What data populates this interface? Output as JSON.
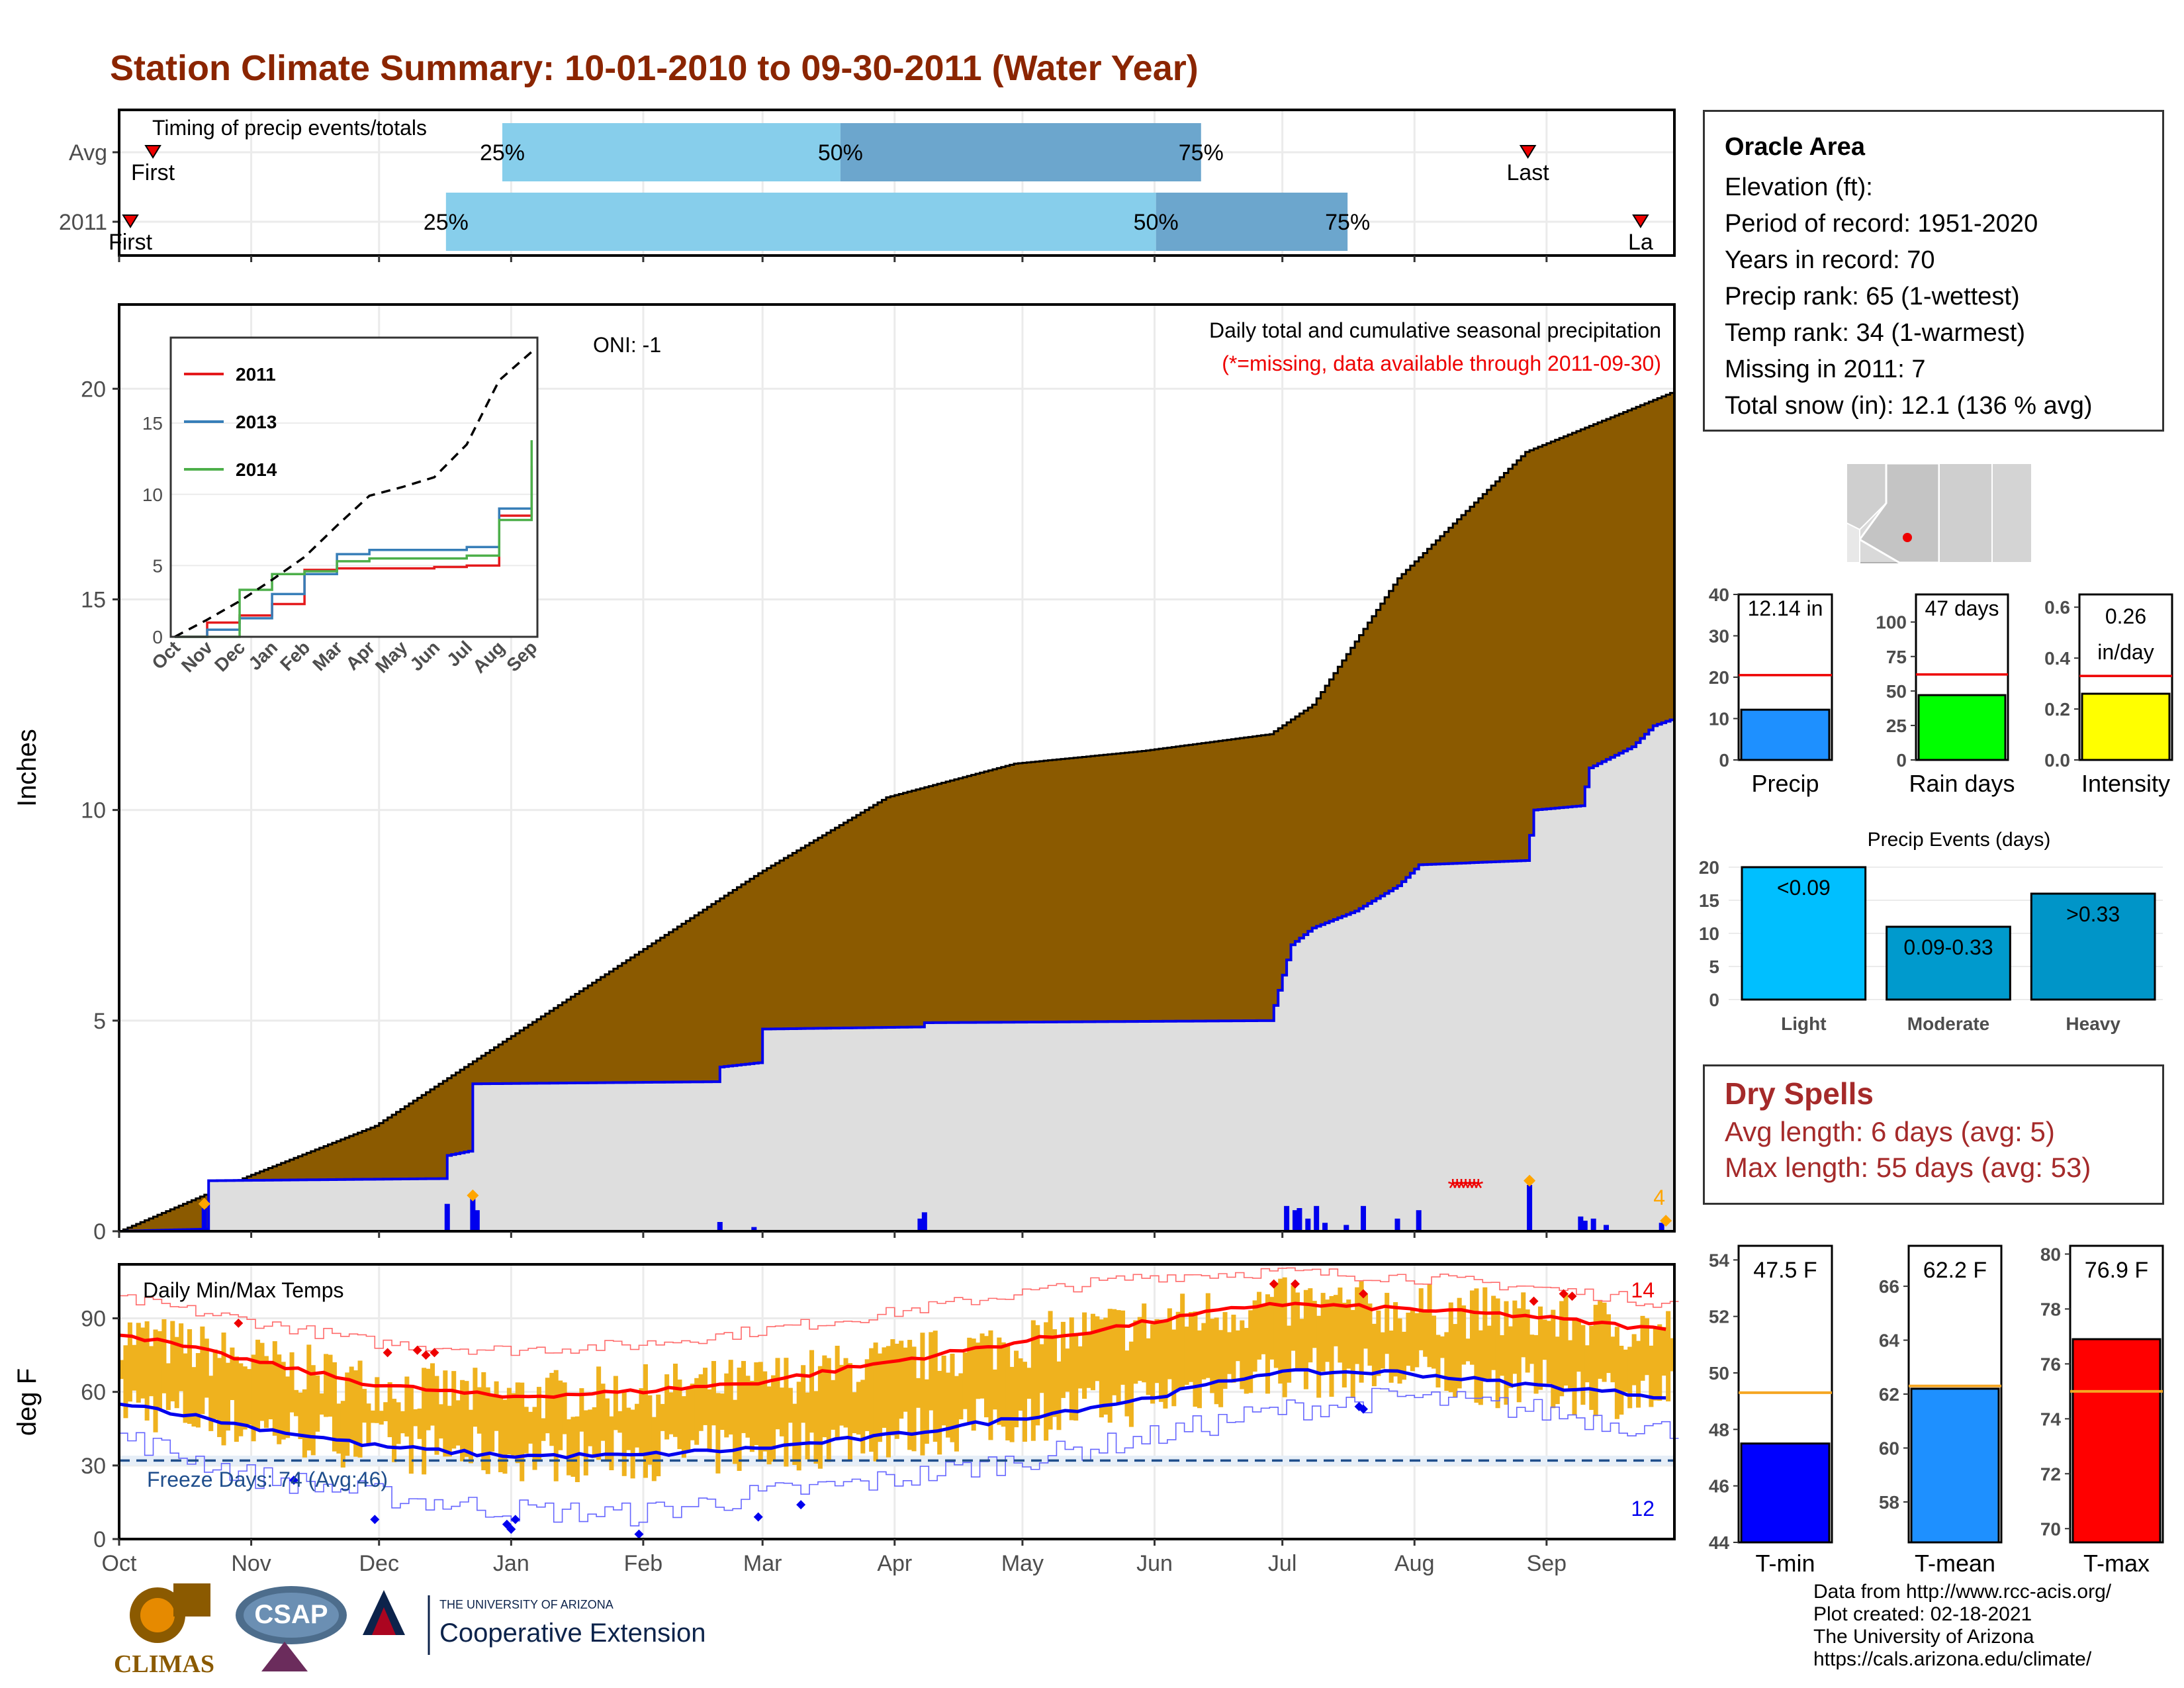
{
  "title": "Station Climate Summary: 10-01-2010 to 09-30-2011 (Water Year)",
  "timing": {
    "label": "Timing of precip events/totals",
    "rows": [
      {
        "name": "Avg",
        "first_label": "First",
        "last_label": "Last",
        "q25": "25%",
        "q50": "50%",
        "q75": "75%",
        "first_day": 3,
        "p25_day": 34,
        "p50_day": 64,
        "p75_day": 96,
        "last_day": 125
      },
      {
        "name": "2011",
        "first_label": "First",
        "last_label": "La",
        "q25": "25%",
        "q50": "50%",
        "q75": "75%",
        "first_day": 1,
        "p25_day": 29,
        "p50_day": 92,
        "p75_day": 109,
        "last_day": 135
      }
    ]
  },
  "precip_panel": {
    "ylabel": "Inches",
    "yticks": [
      "0",
      "5",
      "10",
      "15",
      "20"
    ],
    "ylim": [
      0,
      22
    ],
    "note1": "Daily total and cumulative seasonal precipitation",
    "note2": "(*=missing, data available through 2011-09-30)",
    "oni": "ONI: -1",
    "count_label": "4"
  },
  "inset": {
    "yticks": [
      "0",
      "5",
      "10",
      "15"
    ],
    "xticks": [
      "Oct",
      "Nov",
      "Dec",
      "Jan",
      "Feb",
      "Mar",
      "Apr",
      "May",
      "Jun",
      "Jul",
      "Aug",
      "Sep"
    ],
    "legend": [
      {
        "name": "2011",
        "color": "#e41a1c"
      },
      {
        "name": "2013",
        "color": "#377eb8"
      },
      {
        "name": "2014",
        "color": "#4daf4a"
      }
    ]
  },
  "temp_panel": {
    "ylabel": "deg F",
    "label": "Daily Min/Max Temps",
    "yticks": [
      "0",
      "30",
      "60",
      "90"
    ],
    "ylim": [
      0,
      112
    ],
    "freeze": "Freeze Days: 74 (Avg:46)",
    "freeze_line": 32,
    "count_red": "14",
    "count_blue": "12",
    "xticks": [
      "Oct",
      "Nov",
      "Dec",
      "Jan",
      "Feb",
      "Mar",
      "Apr",
      "May",
      "Jun",
      "Jul",
      "Aug",
      "Sep"
    ]
  },
  "station": {
    "name": "Oracle Area",
    "lines": [
      "Elevation (ft):",
      "Period of record: 1951-2020",
      "Years in record: 70",
      "Precip rank: 65 (1-wettest)",
      "Temp rank: 34 (1-warmest)",
      "Missing in 2011: 7",
      "Total snow (in): 12.1 (136 % avg)"
    ]
  },
  "chart_data": [
    {
      "type": "bar",
      "title": "",
      "categories": [
        "Precip",
        "Rain days",
        "Intensity"
      ],
      "series": [
        {
          "values": [
            12.14,
            47,
            0.26
          ]
        },
        {
          "name": "avg",
          "values": [
            20.5,
            62,
            0.33
          ]
        }
      ],
      "labels": [
        "12.14 in",
        "47 days",
        "0.26",
        "in/day"
      ],
      "ylims": [
        [
          0,
          40
        ],
        [
          0,
          120
        ],
        [
          0,
          0.65
        ]
      ],
      "yticks": [
        [
          "0",
          "10",
          "20",
          "30",
          "40"
        ],
        [
          "0",
          "25",
          "50",
          "75",
          "100"
        ],
        [
          "0.0",
          "0.2",
          "0.4",
          "0.6"
        ]
      ],
      "colors": [
        "#1e90ff",
        "#00ff00",
        "#ffff00"
      ]
    },
    {
      "type": "bar",
      "title": "Precip Events (days)",
      "categories": [
        "Light",
        "Moderate",
        "Heavy"
      ],
      "values": [
        20,
        11,
        16
      ],
      "bar_labels": [
        "<0.09",
        "0.09-0.33",
        ">0.33"
      ],
      "ylim": [
        0,
        21
      ],
      "yticks": [
        "0",
        "5",
        "10",
        "15",
        "20"
      ],
      "colors": [
        "#00bfff",
        "#009acd",
        "#0095c8"
      ]
    },
    {
      "type": "bar",
      "title": "",
      "categories": [
        "T-min",
        "T-mean",
        "T-max"
      ],
      "values": [
        47.5,
        62.2,
        76.9
      ],
      "avg": [
        49.3,
        62.3,
        75.0
      ],
      "labels": [
        "47.5 F",
        "62.2 F",
        "76.9 F"
      ],
      "ylims": [
        [
          44,
          54.5
        ],
        [
          56.5,
          67.5
        ],
        [
          69.5,
          80.3
        ]
      ],
      "yticks": [
        [
          "44",
          "46",
          "48",
          "50",
          "52",
          "54"
        ],
        [
          "58",
          "60",
          "62",
          "64",
          "66"
        ],
        [
          "70",
          "72",
          "74",
          "76",
          "78",
          "80"
        ]
      ],
      "colors": [
        "#0000ff",
        "#1e90ff",
        "#ff0000"
      ]
    },
    {
      "type": "area",
      "title": "Daily total and cumulative seasonal precipitation",
      "x_unit": "day of water year",
      "avg_cumulative": {
        "x": [
          0,
          30,
          60,
          90,
          120,
          150,
          180,
          210,
          240,
          270,
          280,
          300,
          330,
          364
        ],
        "y": [
          0,
          1.3,
          2.5,
          4.5,
          6.5,
          8.5,
          10.3,
          11.1,
          11.4,
          11.8,
          12.5,
          15.5,
          18.5,
          19.9
        ]
      },
      "cumulative_2011": {
        "x": [
          0,
          20,
          21,
          76,
          77,
          82,
          83,
          140,
          141,
          150,
          151,
          188,
          189,
          270,
          275,
          280,
          290,
          300,
          305,
          330,
          332,
          343,
          345,
          355,
          360,
          364
        ],
        "y": [
          0,
          0.05,
          1.2,
          1.25,
          1.8,
          1.9,
          3.5,
          3.55,
          3.9,
          4.0,
          4.8,
          4.85,
          4.95,
          5.0,
          6.8,
          7.2,
          7.6,
          8.2,
          8.7,
          8.8,
          10.0,
          10.1,
          11.0,
          11.5,
          12.0,
          12.14
        ]
      },
      "daily_bars": {
        "x": [
          20,
          77,
          83,
          84,
          141,
          149,
          188,
          189,
          274,
          276,
          277,
          279,
          281,
          283,
          288,
          292,
          300,
          305,
          331,
          343,
          344,
          346,
          349,
          362
        ],
        "y": [
          0.55,
          0.65,
          0.8,
          0.5,
          0.22,
          0.1,
          0.3,
          0.45,
          0.6,
          0.5,
          0.55,
          0.3,
          0.6,
          0.2,
          0.15,
          0.6,
          0.3,
          0.5,
          1.1,
          0.35,
          0.25,
          0.3,
          0.15,
          0.2
        ]
      },
      "missing_days": [
        313,
        314,
        315,
        316,
        317,
        318,
        319
      ]
    },
    {
      "type": "line",
      "title": "",
      "x": [
        "Oct",
        "Nov",
        "Dec",
        "Jan",
        "Feb",
        "Mar",
        "Apr",
        "May",
        "Jun",
        "Jul",
        "Aug",
        "Sep"
      ],
      "series": [
        {
          "name": "2011",
          "values": [
            0.0,
            1.0,
            1.5,
            2.3,
            4.7,
            4.8,
            4.8,
            4.8,
            4.9,
            5.0,
            8.5,
            12.0
          ]
        },
        {
          "name": "2013",
          "values": [
            0.0,
            0.5,
            1.3,
            3.0,
            4.4,
            5.8,
            6.1,
            6.1,
            6.1,
            6.3,
            9.0,
            11.8
          ]
        },
        {
          "name": "2014",
          "values": [
            0.0,
            0.0,
            3.3,
            4.4,
            4.6,
            5.3,
            5.5,
            5.5,
            5.5,
            5.7,
            8.2,
            13.8
          ]
        },
        {
          "name": "avg",
          "values": [
            0.0,
            1.2,
            2.5,
            4.0,
            5.6,
            7.8,
            9.9,
            10.5,
            11.2,
            13.5,
            18.0,
            20.0
          ]
        }
      ],
      "ylim": [
        0,
        21
      ]
    },
    {
      "type": "line",
      "title": "Daily Min/Max Temps",
      "x_unit": "day of water year",
      "avg_max": {
        "x": [
          0,
          30,
          60,
          90,
          120,
          150,
          180,
          210,
          240,
          270,
          300,
          330,
          364
        ],
        "y": [
          84,
          73,
          63,
          58,
          60,
          64,
          72,
          80,
          88,
          96,
          94,
          91,
          85
        ]
      },
      "avg_min": {
        "x": [
          0,
          30,
          60,
          90,
          120,
          150,
          180,
          210,
          240,
          270,
          300,
          330,
          364
        ],
        "y": [
          56,
          46,
          38,
          34,
          34,
          37,
          42,
          49,
          57,
          68,
          68,
          63,
          58
        ]
      },
      "record_max": {
        "x": [
          0,
          30,
          60,
          90,
          120,
          150,
          180,
          210,
          240,
          270,
          300,
          330,
          364
        ],
        "y": [
          98,
          89,
          80,
          77,
          79,
          85,
          92,
          100,
          107,
          109,
          107,
          103,
          96
        ]
      },
      "record_min": {
        "x": [
          0,
          30,
          60,
          90,
          120,
          150,
          180,
          210,
          240,
          270,
          300,
          330,
          364
        ],
        "y": [
          42,
          26,
          18,
          12,
          10,
          18,
          24,
          32,
          41,
          52,
          58,
          53,
          44
        ]
      }
    }
  ]
}
